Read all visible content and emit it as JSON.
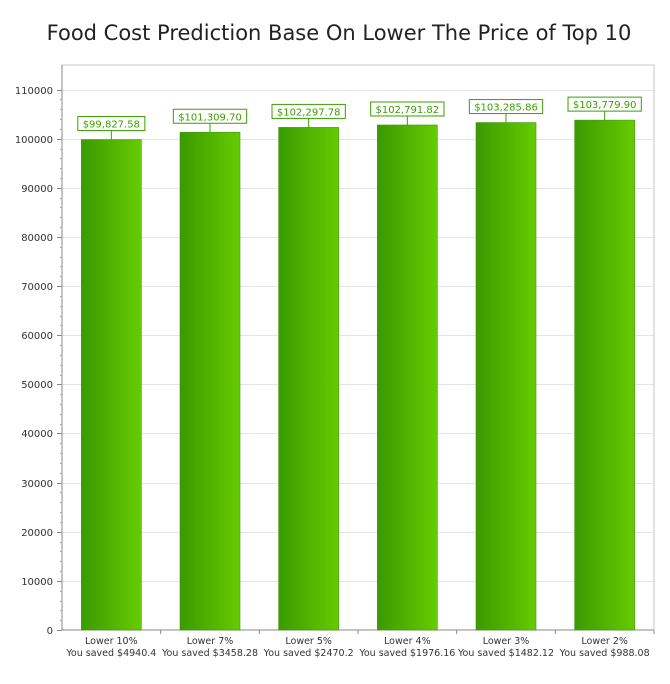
{
  "chart_data": {
    "type": "bar",
    "title": "Food Cost Prediction Base On Lower The Price of Top 10",
    "categories": [
      "Lower 10%",
      "Lower 7%",
      "Lower 5%",
      "Lower 4%",
      "Lower 3%",
      "Lower 2%"
    ],
    "subcategories": [
      "You saved $4940.4",
      "You saved $3458.28",
      "You saved $2470.2",
      "You saved $1976.16",
      "You saved $1482.12",
      "You saved $988.08"
    ],
    "values": [
      99827.58,
      101309.7,
      102297.78,
      102791.82,
      103285.86,
      103779.9
    ],
    "value_labels": [
      "$99,827.58",
      "$101,309.70",
      "$102,297.78",
      "$102,791.82",
      "$103,285.86",
      "$103,779.90"
    ],
    "ylim": [
      0,
      115000
    ],
    "yticks": [
      0,
      10000,
      20000,
      30000,
      40000,
      50000,
      60000,
      70000,
      80000,
      90000,
      100000,
      110000
    ],
    "grid": true,
    "legend": "none",
    "bar_color_dark": "#3a9a00",
    "bar_color_light": "#66cc00",
    "label_color": "#3aa000"
  }
}
